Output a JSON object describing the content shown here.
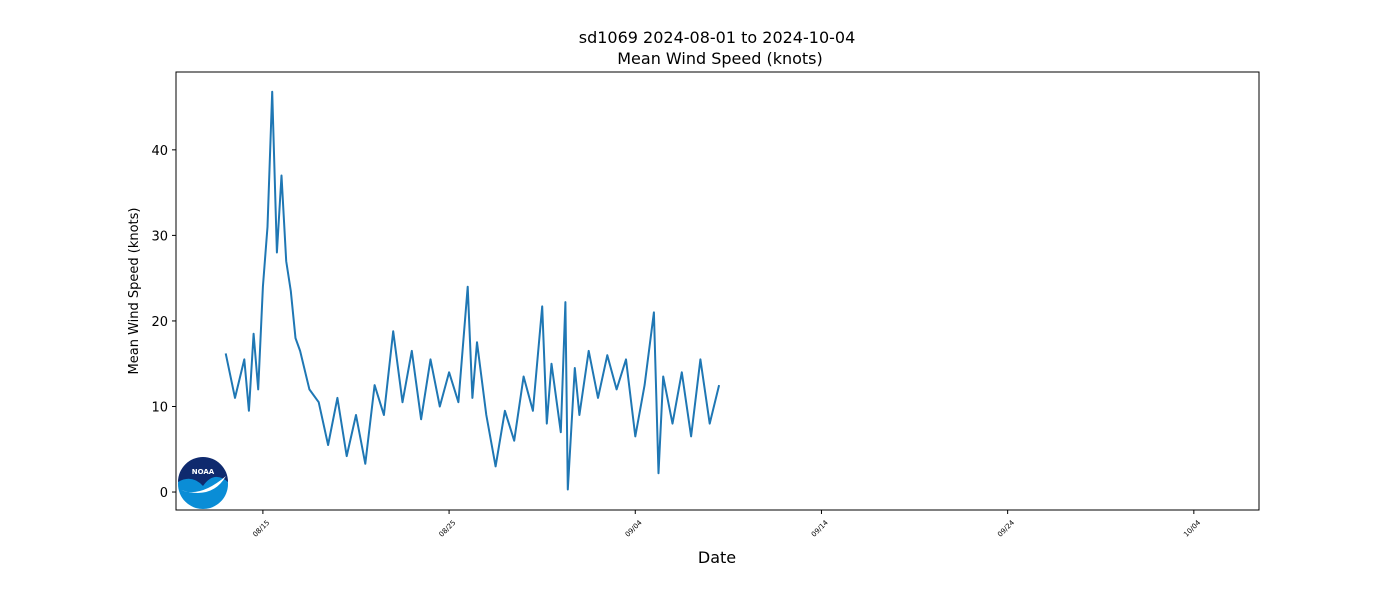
{
  "chart_data": {
    "type": "line",
    "title": "sd1069 2024-08-01 to 2024-10-04",
    "subtitle": "Mean Wind Speed (knots)",
    "x_label": "Date",
    "y_label": "Mean Wind Speed (knots)",
    "logo_text": "NOAA",
    "color": "#1f77b4",
    "x": [
      "08/13 00:00",
      "08/13 12:00",
      "08/14 00:00",
      "08/14 06:00",
      "08/14 12:00",
      "08/14 18:00",
      "08/15 00:00",
      "08/15 06:00",
      "08/15 12:00",
      "08/15 18:00",
      "08/16 00:00",
      "08/16 06:00",
      "08/16 12:00",
      "08/16 18:00",
      "08/17 00:00",
      "08/17 12:00",
      "08/18 00:00",
      "08/18 12:00",
      "08/19 00:00",
      "08/19 12:00",
      "08/20 00:00",
      "08/20 12:00",
      "08/21 00:00",
      "08/21 12:00",
      "08/22 00:00",
      "08/22 12:00",
      "08/23 00:00",
      "08/23 12:00",
      "08/24 00:00",
      "08/24 12:00",
      "08/25 00:00",
      "08/25 12:00",
      "08/26 00:00",
      "08/26 06:00",
      "08/26 12:00",
      "08/27 00:00",
      "08/27 12:00",
      "08/28 00:00",
      "08/28 12:00",
      "08/29 00:00",
      "08/29 12:00",
      "08/30 00:00",
      "08/30 06:00",
      "08/30 12:00",
      "08/31 00:00",
      "08/31 06:00",
      "08/31 09:00",
      "08/31 18:00",
      "09/01 00:00",
      "09/01 12:00",
      "09/02 00:00",
      "09/02 12:00",
      "09/03 00:00",
      "09/03 12:00",
      "09/04 00:00",
      "09/04 12:00",
      "09/05 00:00",
      "09/05 06:00",
      "09/05 12:00",
      "09/06 00:00",
      "09/06 12:00",
      "09/07 00:00",
      "09/07 12:00",
      "09/08 00:00",
      "09/08 12:00"
    ],
    "values": [
      16.2,
      11.0,
      15.5,
      9.5,
      18.5,
      12.0,
      24.0,
      31.0,
      46.8,
      28.0,
      37.0,
      27.0,
      23.5,
      18.0,
      16.5,
      12.0,
      10.5,
      5.5,
      11.0,
      4.2,
      9.0,
      3.3,
      12.5,
      9.0,
      18.8,
      10.5,
      16.5,
      8.5,
      15.5,
      10.0,
      14.0,
      10.5,
      24.0,
      11.0,
      17.5,
      9.0,
      3.0,
      9.5,
      6.0,
      13.5,
      9.5,
      21.7,
      8.0,
      15.0,
      7.0,
      22.2,
      0.3,
      14.5,
      9.0,
      16.5,
      11.0,
      16.0,
      12.0,
      15.5,
      6.5,
      12.5,
      21.0,
      2.2,
      13.5,
      8.0,
      14.0,
      6.5,
      15.5,
      8.0,
      12.5
    ],
    "xlim": [
      "08/10 08:00",
      "10/07 12:00"
    ],
    "xticks": [
      "08/15",
      "08/25",
      "09/04",
      "09/14",
      "09/24",
      "10/04"
    ],
    "ylim": [
      -2.1,
      49.1
    ],
    "yticks": [
      0,
      10,
      20,
      30,
      40
    ]
  }
}
